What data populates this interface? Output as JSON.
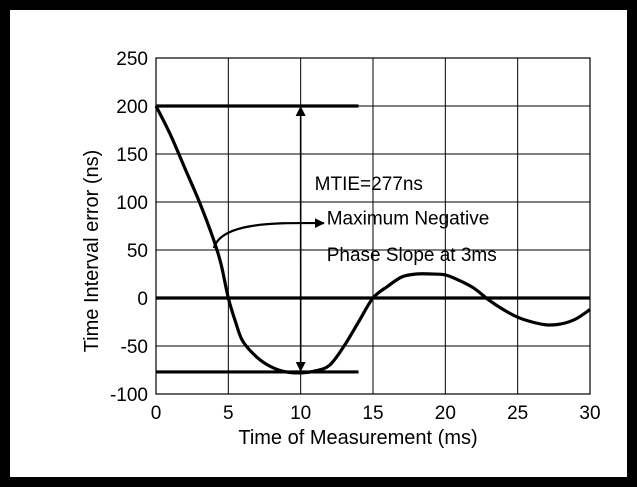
{
  "chart_data": {
    "type": "line",
    "title": "",
    "xlabel": "Time of Measurement (ms)",
    "ylabel": "Time Interval error (ns)",
    "xlim": [
      0,
      30
    ],
    "ylim": [
      -100,
      250
    ],
    "x_ticks": [
      "0",
      "5",
      "10",
      "15",
      "20",
      "25",
      "30"
    ],
    "y_ticks": [
      "250",
      "200",
      "150",
      "100",
      "50",
      "0",
      "-50",
      "-100"
    ],
    "grid": true,
    "series": [
      {
        "name": "",
        "x": [
          0,
          1,
          2,
          3,
          4,
          4.5,
          5,
          5.5,
          6,
          7,
          8,
          9,
          10,
          11,
          12,
          13,
          14,
          15,
          16,
          17,
          18,
          19,
          20,
          21,
          22,
          23,
          24,
          25,
          26,
          27,
          28,
          29,
          30
        ],
        "y": [
          200,
          170,
          135,
          100,
          60,
          35,
          0,
          -25,
          -45,
          -62,
          -72,
          -77,
          -78,
          -76,
          -70,
          -50,
          -25,
          0,
          12,
          22,
          25,
          25,
          24,
          18,
          10,
          -2,
          -12,
          -20,
          -25,
          -28,
          -27,
          -22,
          -12
        ]
      }
    ],
    "reference_lines": [
      {
        "y": 200,
        "x_start": 0,
        "x_end": 14
      },
      {
        "y": -77,
        "x_start": 0,
        "x_end": 14
      },
      {
        "y": 0,
        "x_start": 0,
        "x_end": 30
      }
    ],
    "annotations": {
      "mtie_label": "MTIE=277ns",
      "mtie_x": 10,
      "mtie_top": 200,
      "mtie_bottom": -77,
      "slope_label_line1": "Maximum Negative",
      "slope_label_line2": "Phase Slope at 3ms"
    }
  }
}
